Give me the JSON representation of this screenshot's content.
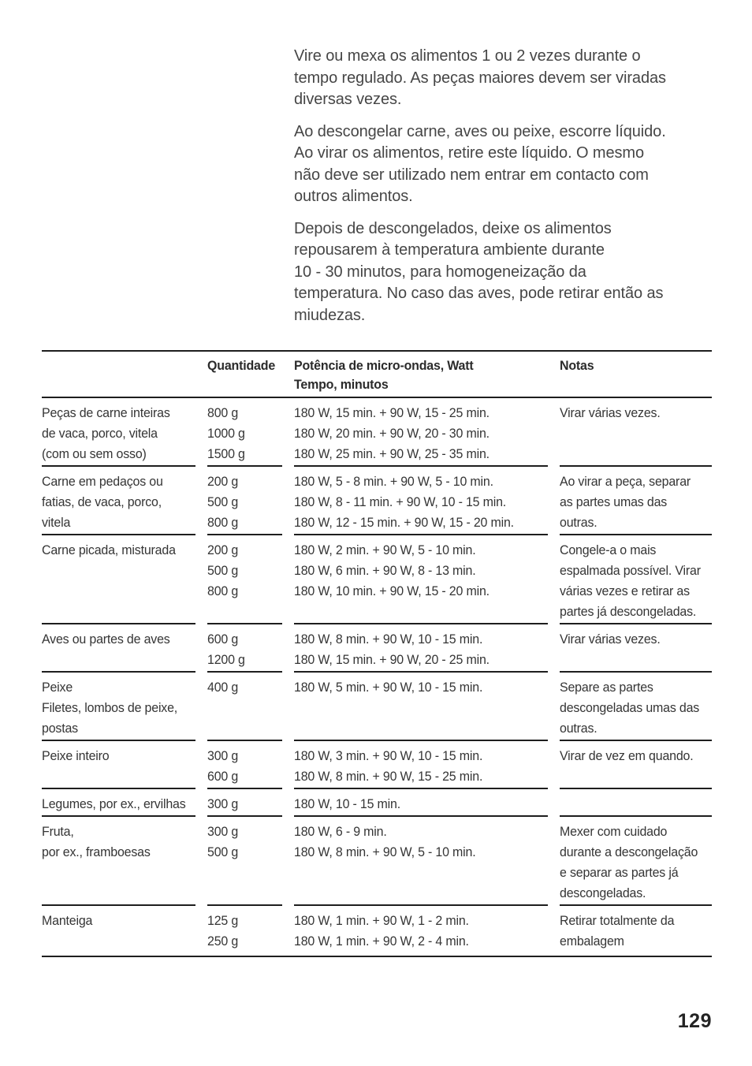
{
  "page": {
    "number": "129"
  },
  "intro_paragraphs": [
    "Vire ou mexa os alimentos 1 ou 2 vezes durante o\ntempo regulado. As peças maiores devem ser viradas\ndiversas vezes.",
    "Ao descongelar carne, aves ou peixe, escorre líquido.\nAo virar os alimentos, retire este líquido. O mesmo\nnão deve ser utilizado nem entrar em contacto com\noutros alimentos.",
    "Depois de descongelados, deixe os alimentos\nrepousarem à temperatura ambiente durante\n10 - 30 minutos, para homogeneização da\ntemperatura. No caso das aves, pode retirar então as\nmiudezas."
  ],
  "table": {
    "headers": {
      "food": "",
      "quantity": "Quantidade",
      "power": "Potência de micro-ondas, Watt\nTempo, minutos",
      "notes": "Notas"
    },
    "rows": [
      {
        "food": "Peças de carne inteiras\nde vaca, porco, vitela\n(com ou sem osso)",
        "quantity": "800 g\n1000 g\n1500 g",
        "power": "180 W, 15 min. + 90 W, 15 - 25 min.\n180 W, 20 min. + 90 W, 20 - 30 min.\n180 W, 25 min. + 90 W, 25 - 35 min.",
        "notes": "Virar várias vezes."
      },
      {
        "food": "Carne em pedaços ou\nfatias, de vaca, porco,\nvitela",
        "quantity": "200 g\n500 g\n800 g",
        "power": "180 W, 5 - 8 min. + 90 W, 5 - 10 min.\n180 W, 8 - 11 min. + 90 W, 10 - 15 min.\n180 W, 12 - 15 min. + 90 W, 15 - 20 min.",
        "notes": "Ao virar a peça, separar\nas partes umas das\noutras."
      },
      {
        "food": "Carne picada, misturada",
        "quantity": "200 g\n500 g\n800 g",
        "power": "180 W, 2 min. + 90 W, 5 - 10 min.\n180 W, 6 min. + 90 W, 8 - 13 min.\n180 W, 10 min. + 90 W, 15 - 20 min.",
        "notes": "Congele-a o mais\nespalmada possível. Virar\nvárias vezes e retirar as\npartes já descongeladas."
      },
      {
        "food": "Aves ou partes de aves",
        "quantity": "600 g\n1200 g",
        "power": "180 W, 8 min. + 90 W, 10 - 15 min.\n180 W, 15 min. + 90 W, 20 - 25 min.",
        "notes": "Virar várias vezes."
      },
      {
        "food": "Peixe\nFiletes, lombos de peixe,\npostas",
        "quantity": "400 g",
        "power": "180 W, 5 min. + 90 W, 10 - 15 min.",
        "notes": "Separe as partes\ndescongeladas umas das\noutras."
      },
      {
        "food": "Peixe inteiro",
        "quantity": "300 g\n600 g",
        "power": "180 W, 3 min. + 90 W, 10 - 15 min.\n180 W, 8 min. + 90 W, 15 - 25 min.",
        "notes": "Virar de vez em quando."
      },
      {
        "food": "Legumes, por ex., ervilhas",
        "quantity": "300 g",
        "power": "180 W, 10 - 15 min.",
        "notes": ""
      },
      {
        "food": "Fruta,\npor ex., framboesas",
        "quantity": "300 g\n500 g",
        "power": "180 W, 6 - 9 min.\n180 W, 8 min. + 90 W, 5 - 10 min.",
        "notes": "Mexer com cuidado\ndurante a descongelação\ne separar as partes já\ndescongeladas."
      },
      {
        "food": "Manteiga",
        "quantity": "125 g\n250 g",
        "power": "180 W, 1 min. + 90 W, 1 - 2 min.\n180 W, 1 min. + 90 W, 2 - 4 min.",
        "notes": "Retirar totalmente da\nembalagem"
      }
    ]
  }
}
